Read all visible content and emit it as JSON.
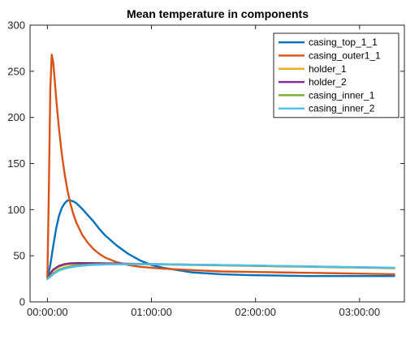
{
  "chart_data": {
    "type": "line",
    "title": "Mean temperature in components",
    "xlabel": "",
    "ylabel": "",
    "x_unit": "seconds",
    "xlim": [
      -600,
      12350
    ],
    "ylim": [
      0,
      300
    ],
    "x_ticks": [
      {
        "value": 0,
        "label": "00:00:00"
      },
      {
        "value": 3600,
        "label": "01:00:00"
      },
      {
        "value": 7200,
        "label": "02:00:00"
      },
      {
        "value": 10800,
        "label": "03:00:00"
      }
    ],
    "y_ticks": [
      {
        "value": 0,
        "label": "0"
      },
      {
        "value": 50,
        "label": "50"
      },
      {
        "value": 100,
        "label": "100"
      },
      {
        "value": 150,
        "label": "150"
      },
      {
        "value": 200,
        "label": "200"
      },
      {
        "value": 250,
        "label": "250"
      },
      {
        "value": 300,
        "label": "300"
      }
    ],
    "grid": false,
    "legend_position": "top-right",
    "series": [
      {
        "name": "casing_top_1_1",
        "color": "#0072BD",
        "x": [
          0,
          100,
          200,
          300,
          400,
          500,
          600,
          700,
          800,
          900,
          1000,
          1200,
          1400,
          1600,
          1800,
          2000,
          2400,
          2800,
          3200,
          3600,
          4000,
          5000,
          6000,
          7000,
          8000,
          9000,
          10000,
          11000,
          12000
        ],
        "y": [
          25,
          40,
          60,
          79,
          93,
          102,
          107,
          110,
          110,
          109,
          107,
          101,
          94,
          87,
          79,
          72,
          61,
          52,
          45,
          40,
          37,
          32,
          30,
          29,
          28.5,
          28,
          28,
          28,
          28
        ]
      },
      {
        "name": "casing_outer1_1",
        "color": "#D95319",
        "x": [
          0,
          50,
          100,
          150,
          200,
          250,
          300,
          400,
          500,
          600,
          700,
          800,
          900,
          1000,
          1200,
          1400,
          1600,
          1800,
          2000,
          2400,
          2800,
          3200,
          3600,
          4000,
          5000,
          6000,
          7000,
          8000,
          9000,
          10000,
          11000,
          12000
        ],
        "y": [
          25,
          120,
          230,
          268,
          260,
          242,
          222,
          188,
          160,
          138,
          120,
          106,
          95,
          86,
          73,
          64,
          57,
          52,
          48,
          43,
          40,
          38,
          37,
          36,
          34.5,
          33,
          32.5,
          32,
          31.5,
          31,
          30.5,
          30
        ]
      },
      {
        "name": "holder_1",
        "color": "#EDB120",
        "x": [
          0,
          100,
          200,
          400,
          600,
          800,
          1000,
          1500,
          2000,
          3000,
          4000,
          5000,
          6000,
          7000,
          8000,
          9000,
          10000,
          11000,
          12000
        ],
        "y": [
          25,
          30,
          34,
          38,
          40,
          41,
          41.5,
          41.5,
          41.3,
          41,
          40.5,
          40,
          39.5,
          39,
          38.5,
          38,
          37.5,
          37,
          36.5
        ]
      },
      {
        "name": "holder_2",
        "color": "#7E2F8E",
        "x": [
          0,
          100,
          200,
          400,
          600,
          800,
          1000,
          1500,
          2000,
          3000,
          4000,
          5000,
          6000,
          7000,
          8000,
          9000,
          10000,
          11000,
          12000
        ],
        "y": [
          25,
          31,
          35,
          39,
          41,
          41.8,
          42,
          42,
          41.8,
          41.3,
          40.8,
          40.3,
          39.8,
          39.3,
          38.8,
          38.3,
          37.8,
          37.3,
          36.8
        ]
      },
      {
        "name": "casing_inner_1",
        "color": "#77AC30",
        "x": [
          0,
          100,
          200,
          400,
          600,
          800,
          1000,
          1500,
          2000,
          3000,
          4000,
          5000,
          6000,
          7000,
          8000,
          9000,
          10000,
          11000,
          12000
        ],
        "y": [
          25,
          28,
          31,
          35,
          37,
          38.5,
          39.5,
          40.5,
          41,
          41,
          40.7,
          40.3,
          39.8,
          39.3,
          38.8,
          38.3,
          37.8,
          37.3,
          36.8
        ]
      },
      {
        "name": "casing_inner_2",
        "color": "#4DBEEE",
        "x": [
          0,
          100,
          200,
          400,
          600,
          800,
          1000,
          1500,
          2000,
          3000,
          4000,
          5000,
          6000,
          7000,
          8000,
          9000,
          10000,
          11000,
          12000
        ],
        "y": [
          25,
          27,
          30,
          34,
          36,
          37.5,
          38.5,
          40,
          40.5,
          41,
          40.8,
          40.4,
          40,
          39.5,
          39,
          38.5,
          38,
          37.5,
          37
        ]
      }
    ]
  }
}
